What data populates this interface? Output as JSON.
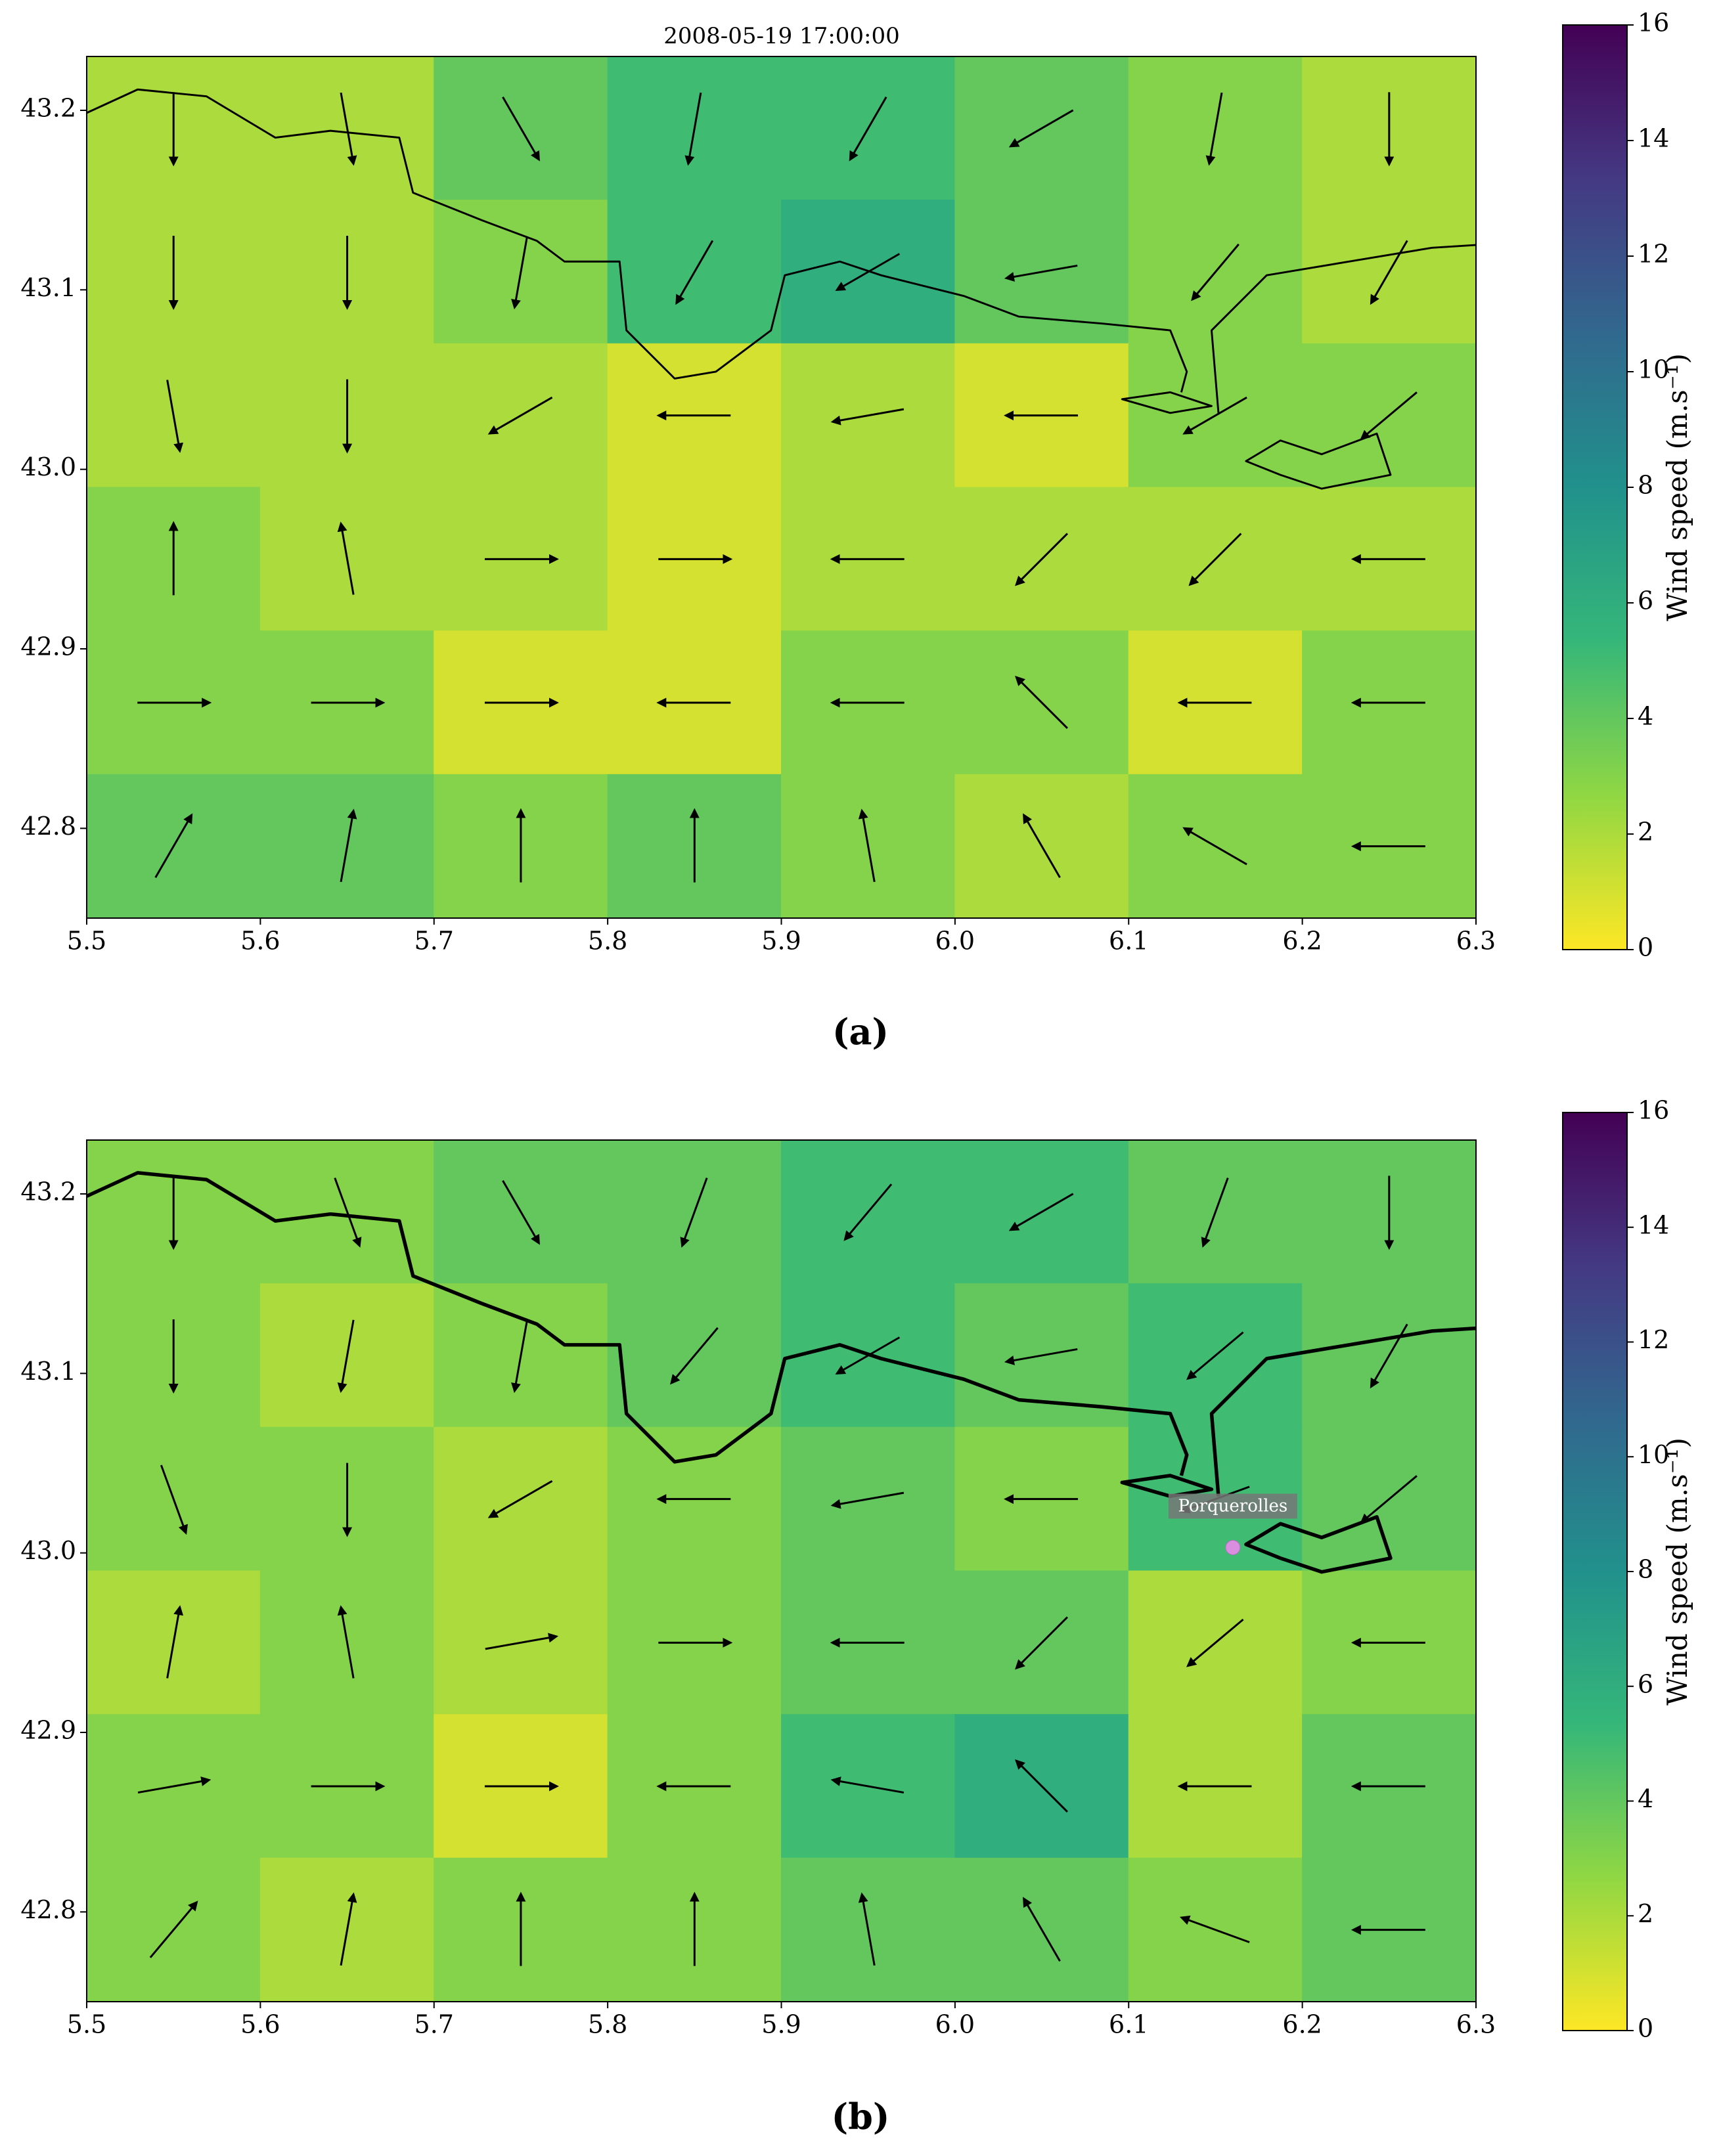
{
  "chart_data": [
    {
      "type": "heatmap",
      "title": "2008-05-19 17:00:00",
      "caption": "(a)",
      "xlim": [
        5.5,
        6.3
      ],
      "ylim": [
        42.75,
        43.23
      ],
      "xticks": [
        5.5,
        5.6,
        5.7,
        5.8,
        5.9,
        {
          "value": 6,
          "label": "6.0"
        },
        6.1,
        6.2,
        6.3
      ],
      "yticks": [
        42.8,
        42.9,
        {
          "value": 43,
          "label": "43.0"
        },
        43.1,
        43.2
      ],
      "lon": [
        5.55,
        5.65,
        5.75,
        5.85,
        5.95,
        6.05,
        6.15,
        6.25
      ],
      "lat": [
        43.19,
        43.11,
        43.03,
        42.95,
        42.87,
        42.79
      ],
      "speed": [
        [
          2,
          2,
          4,
          5,
          5,
          4,
          3,
          2
        ],
        [
          2,
          2,
          3,
          5,
          6,
          4,
          3,
          2
        ],
        [
          2,
          2,
          2,
          1,
          2,
          1,
          3,
          3
        ],
        [
          3,
          2,
          2,
          1,
          2,
          2,
          2,
          2
        ],
        [
          3,
          3,
          1,
          1,
          3,
          3,
          1,
          3
        ],
        [
          4,
          4,
          3,
          4,
          3,
          2,
          3,
          3
        ]
      ],
      "direction": [
        [
          -90,
          -80,
          -60,
          -100,
          -120,
          -150,
          -100,
          -90
        ],
        [
          -90,
          -90,
          -100,
          -120,
          -150,
          -170,
          -130,
          -120
        ],
        [
          -80,
          -90,
          -150,
          180,
          -170,
          180,
          -150,
          -140
        ],
        [
          90,
          100,
          0,
          0,
          180,
          -135,
          -135,
          180
        ],
        [
          0,
          0,
          0,
          180,
          180,
          135,
          180,
          180
        ],
        [
          60,
          80,
          90,
          90,
          100,
          120,
          150,
          180
        ]
      ],
      "clim": [
        0,
        16
      ],
      "cticks": [
        0,
        2,
        4,
        6,
        8,
        10,
        12,
        14,
        16
      ],
      "colormap": [
        "#fde725",
        "#90d743",
        "#35b779",
        "#21918c",
        "#31688e",
        "#443983",
        "#440154"
      ],
      "colorbar_label": "Wind speed (m.s⁻¹)"
    },
    {
      "type": "heatmap",
      "caption": "(b)",
      "xlim": [
        5.5,
        6.3
      ],
      "ylim": [
        42.75,
        43.23
      ],
      "xticks": [
        5.5,
        5.6,
        5.7,
        5.8,
        5.9,
        {
          "value": 6,
          "label": "6.0"
        },
        6.1,
        6.2,
        6.3
      ],
      "yticks": [
        42.8,
        42.9,
        {
          "value": 43,
          "label": "43.0"
        },
        43.1,
        43.2
      ],
      "lon": [
        5.55,
        5.65,
        5.75,
        5.85,
        5.95,
        6.05,
        6.15,
        6.25
      ],
      "lat": [
        43.19,
        43.11,
        43.03,
        42.95,
        42.87,
        42.79
      ],
      "speed": [
        [
          3,
          3,
          4,
          4,
          5,
          5,
          4,
          4
        ],
        [
          3,
          2,
          3,
          4,
          5,
          4,
          5,
          4
        ],
        [
          3,
          3,
          2,
          3,
          4,
          3,
          5,
          4
        ],
        [
          2,
          3,
          2,
          3,
          4,
          4,
          2,
          3
        ],
        [
          3,
          3,
          1,
          3,
          5,
          6,
          2,
          4
        ],
        [
          3,
          2,
          3,
          3,
          4,
          4,
          3,
          4
        ]
      ],
      "direction": [
        [
          -90,
          -70,
          -60,
          -110,
          -130,
          -150,
          -110,
          -90
        ],
        [
          -90,
          -100,
          -100,
          -130,
          -150,
          -170,
          -140,
          -120
        ],
        [
          -70,
          -90,
          -150,
          180,
          -170,
          180,
          -160,
          -140
        ],
        [
          80,
          100,
          10,
          0,
          180,
          -135,
          -140,
          180
        ],
        [
          10,
          0,
          0,
          180,
          170,
          135,
          180,
          180
        ],
        [
          50,
          80,
          90,
          90,
          100,
          120,
          160,
          180
        ]
      ],
      "annotation": {
        "text": "Porquerolles",
        "x": 6.16,
        "y": 43.003
      },
      "clim": [
        0,
        16
      ],
      "cticks": [
        0,
        2,
        4,
        6,
        8,
        10,
        12,
        14,
        16
      ],
      "colormap": [
        "#fde725",
        "#90d743",
        "#35b779",
        "#21918c",
        "#31688e",
        "#443983",
        "#440154"
      ],
      "colorbar_label": "Wind speed (m.s⁻¹)"
    }
  ]
}
